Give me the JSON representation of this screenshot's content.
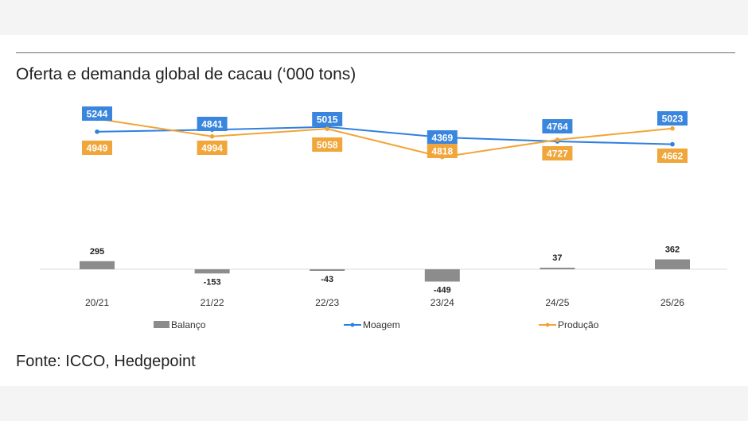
{
  "title": "Oferta e demanda global de cacau (‘000 tons)",
  "source": "Fonte: ICCO, Hedgepoint",
  "colors": {
    "balanco": "#8c8c8c",
    "moagem": "#2f7fe0",
    "producao": "#f2a535",
    "moagem_label_bg": "#3a86de",
    "producao_label_bg": "#f0a63a"
  },
  "chart_data": {
    "type": "bar",
    "categories": [
      "20/21",
      "21/22",
      "22/23",
      "23/24",
      "24/25",
      "25/26"
    ],
    "series": [
      {
        "name": "Balanço",
        "type": "bar",
        "values": [
          295,
          -153,
          -43,
          -449,
          37,
          362
        ]
      },
      {
        "name": "Moagem",
        "type": "line",
        "values": [
          4949,
          4994,
          5058,
          4818,
          4727,
          4662
        ]
      },
      {
        "name": "Produção",
        "type": "line",
        "values": [
          5244,
          4841,
          5015,
          4369,
          4764,
          5023
        ]
      }
    ],
    "legend_position": "bottom",
    "grid": false
  }
}
